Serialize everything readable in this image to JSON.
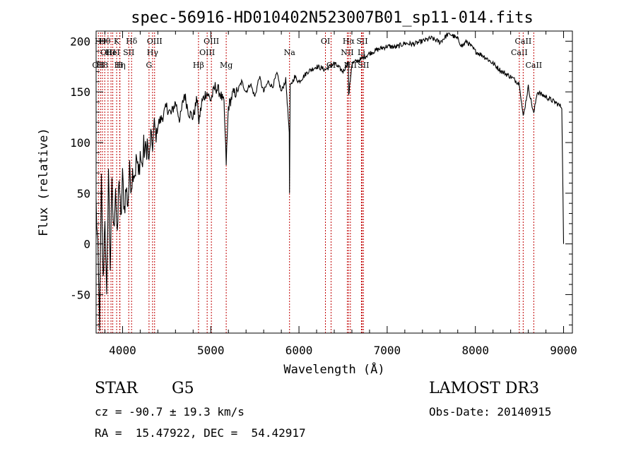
{
  "chart_data": {
    "type": "line",
    "title": "spec-56916-HD010402N523007B01_sp11-014.fits",
    "xlabel": "Wavelength (Å)",
    "ylabel": "Flux (relative)",
    "xlim": [
      3700,
      9100
    ],
    "ylim": [
      -88,
      210
    ],
    "xticks": [
      4000,
      5000,
      6000,
      7000,
      8000,
      9000
    ],
    "yticks": [
      -50,
      0,
      50,
      100,
      150,
      200
    ],
    "series": [
      {
        "name": "flux",
        "x": [
          3700,
          3720,
          3740,
          3760,
          3780,
          3800,
          3820,
          3840,
          3860,
          3880,
          3900,
          3920,
          3940,
          3960,
          3980,
          4000,
          4020,
          4040,
          4060,
          4080,
          4100,
          4120,
          4140,
          4160,
          4180,
          4200,
          4220,
          4240,
          4260,
          4280,
          4300,
          4320,
          4340,
          4360,
          4380,
          4400,
          4450,
          4500,
          4550,
          4600,
          4650,
          4700,
          4750,
          4800,
          4850,
          4860,
          4900,
          4950,
          5000,
          5050,
          5100,
          5150,
          5175,
          5200,
          5250,
          5300,
          5350,
          5400,
          5450,
          5500,
          5550,
          5600,
          5650,
          5700,
          5750,
          5800,
          5850,
          5890,
          5893,
          5900,
          5950,
          6000,
          6100,
          6200,
          6300,
          6400,
          6500,
          6560,
          6563,
          6600,
          6700,
          6800,
          6900,
          7000,
          7100,
          7200,
          7300,
          7400,
          7500,
          7600,
          7700,
          7750,
          7800,
          7850,
          7900,
          8000,
          8100,
          8200,
          8300,
          8400,
          8500,
          8542,
          8600,
          8662,
          8700,
          8800,
          8900,
          8980,
          9000
        ],
        "values": [
          40,
          -10,
          -80,
          60,
          -40,
          30,
          -60,
          75,
          -20,
          55,
          10,
          60,
          0,
          70,
          20,
          65,
          35,
          55,
          40,
          70,
          60,
          75,
          70,
          85,
          65,
          90,
          75,
          95,
          90,
          100,
          80,
          110,
          95,
          120,
          105,
          118,
          125,
          135,
          128,
          140,
          122,
          148,
          130,
          125,
          145,
          118,
          140,
          150,
          142,
          155,
          150,
          138,
          80,
          135,
          148,
          150,
          160,
          150,
          158,
          145,
          165,
          150,
          160,
          155,
          168,
          150,
          162,
          110,
          50,
          155,
          165,
          160,
          170,
          175,
          172,
          178,
          170,
          180,
          145,
          178,
          182,
          188,
          192,
          195,
          194,
          198,
          197,
          200,
          203,
          199,
          208,
          205,
          202,
          195,
          200,
          190,
          185,
          178,
          170,
          165,
          158,
          125,
          155,
          128,
          150,
          145,
          140,
          135,
          0
        ]
      }
    ],
    "line_markers": [
      {
        "x": 3726,
        "row": 2,
        "label": "OII"
      },
      {
        "x": 3750,
        "row": 0,
        "label": "H9"
      },
      {
        "x": 3771,
        "row": 2,
        "label": "H8"
      },
      {
        "x": 3798,
        "row": 0,
        "label": "Hθ"
      },
      {
        "x": 3835,
        "row": 1,
        "label": "OIII"
      },
      {
        "x": 3869,
        "row": 1,
        "label": "He"
      },
      {
        "x": 3889,
        "row": 1,
        "label": "HeI"
      },
      {
        "x": 3933,
        "row": 0,
        "label": "K"
      },
      {
        "x": 3968,
        "row": 2,
        "label": "H"
      },
      {
        "x": 3970,
        "row": 2,
        "label": "Hη"
      },
      {
        "x": 4070,
        "row": 1,
        "label": "SII"
      },
      {
        "x": 4102,
        "row": 0,
        "label": "Hδ"
      },
      {
        "x": 4300,
        "row": 2,
        "label": "G"
      },
      {
        "x": 4340,
        "row": 1,
        "label": "Hγ"
      },
      {
        "x": 4363,
        "row": 0,
        "label": "OIII"
      },
      {
        "x": 4861,
        "row": 2,
        "label": "Hβ"
      },
      {
        "x": 4959,
        "row": 1,
        "label": "OIII"
      },
      {
        "x": 5007,
        "row": 0,
        "label": "OIII"
      },
      {
        "x": 5175,
        "row": 2,
        "label": "Mg"
      },
      {
        "x": 5893,
        "row": 1,
        "label": "Na"
      },
      {
        "x": 6300,
        "row": 0,
        "label": "OI"
      },
      {
        "x": 6364,
        "row": 2,
        "label": "OI"
      },
      {
        "x": 6548,
        "row": 1,
        "label": "NII"
      },
      {
        "x": 6563,
        "row": 0,
        "label": "Hα"
      },
      {
        "x": 6583,
        "row": 2,
        "label": "NII"
      },
      {
        "x": 6716,
        "row": 0,
        "label": "SII"
      },
      {
        "x": 6708,
        "row": 1,
        "label": "Li"
      },
      {
        "x": 6731,
        "row": 2,
        "label": "SII"
      },
      {
        "x": 8498,
        "row": 1,
        "label": "CaII"
      },
      {
        "x": 8542,
        "row": 0,
        "label": "CaII"
      },
      {
        "x": 8662,
        "row": 2,
        "label": "CaII"
      }
    ]
  },
  "info": {
    "class_label": "STAR",
    "subclass": "G5",
    "survey": "LAMOST DR3",
    "cz_line": "cz = -90.7 ± 19.3 km/s",
    "obs_date": "Obs-Date: 20140915",
    "coords": "RA =  15.47922, DEC =  54.42917"
  }
}
